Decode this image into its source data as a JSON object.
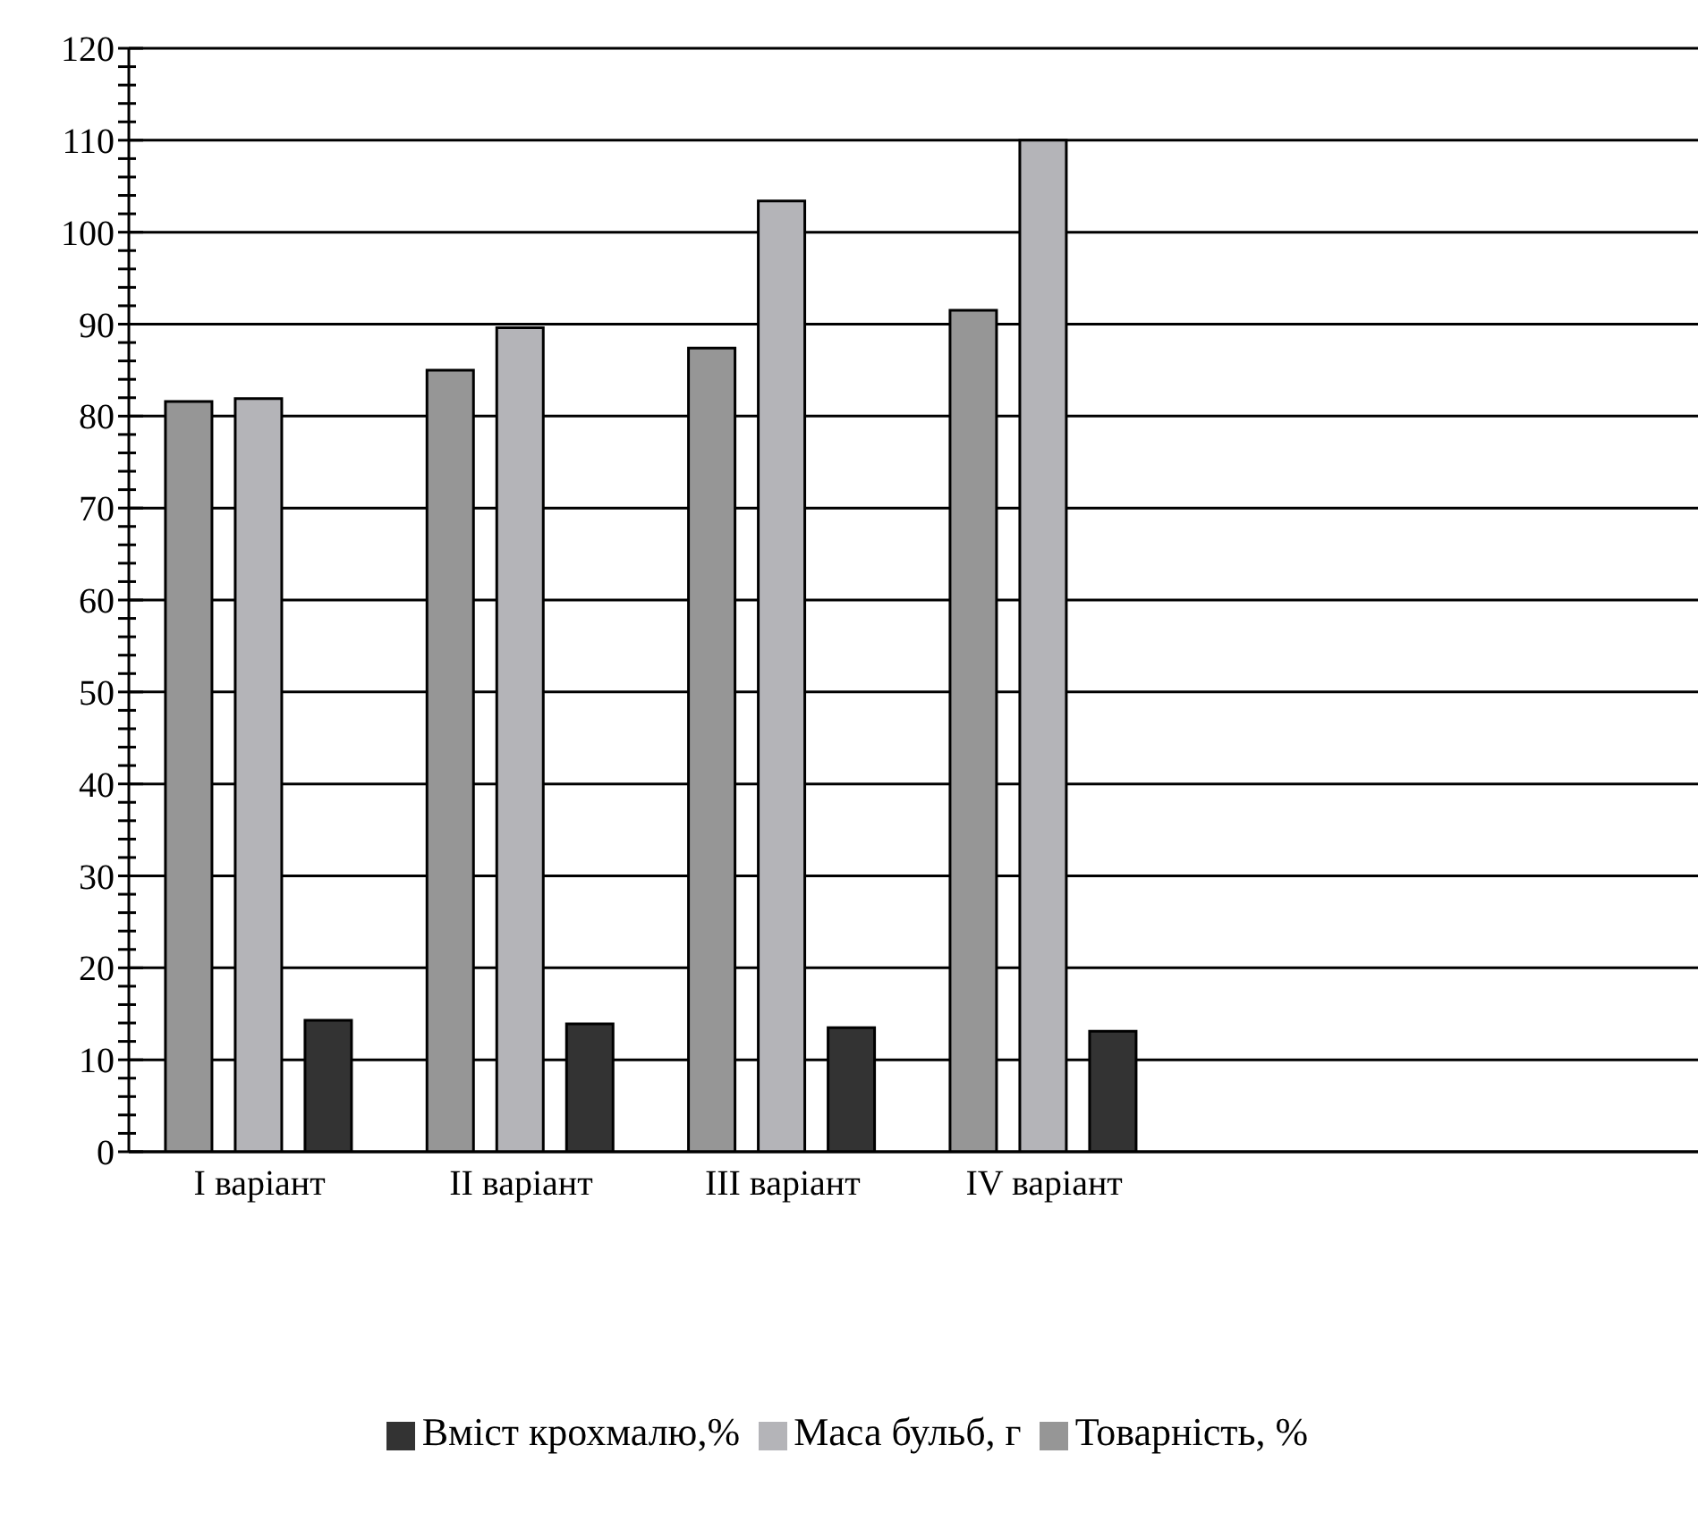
{
  "chart_data": {
    "type": "bar",
    "categories": [
      "I варіант",
      "II варіант",
      "III варіант",
      "IV варіант",
      null,
      null
    ],
    "series": [
      {
        "name": "Товарність, %",
        "color": "#969696",
        "values": [
          81.6,
          85.0,
          87.4,
          91.5,
          null,
          null
        ]
      },
      {
        "name": "Маса бульб, г",
        "color": "#b4b4b8",
        "values": [
          81.9,
          89.6,
          103.4,
          110,
          null,
          null
        ]
      },
      {
        "name": "Вміст крохмалю,%",
        "color": "#333333",
        "values": [
          14.3,
          13.9,
          13.5,
          13.1,
          null,
          null
        ]
      }
    ],
    "ylim": [
      0,
      120
    ],
    "yticks": [
      0,
      {
        "value": 2,
        "label": null
      },
      {
        "value": 4,
        "label": null
      },
      {
        "value": 6,
        "label": null
      },
      {
        "value": 8,
        "label": null
      },
      10,
      {
        "value": 12,
        "label": null
      },
      {
        "value": 14,
        "label": null
      },
      {
        "value": 16,
        "label": null
      },
      {
        "value": 18,
        "label": null
      },
      20,
      {
        "value": 22,
        "label": null
      },
      {
        "value": 24,
        "label": null
      },
      {
        "value": 26,
        "label": null
      },
      {
        "value": 28,
        "label": null
      },
      30,
      {
        "value": 32,
        "label": null
      },
      {
        "value": 34,
        "label": null
      },
      {
        "value": 36,
        "label": null
      },
      {
        "value": 38,
        "label": null
      },
      40,
      {
        "value": 42,
        "label": null
      },
      {
        "value": 44,
        "label": null
      },
      {
        "value": 46,
        "label": null
      },
      {
        "value": 48,
        "label": null
      },
      50,
      {
        "value": 52,
        "label": null
      },
      {
        "value": 54,
        "label": null
      },
      {
        "value": 56,
        "label": null
      },
      {
        "value": 58,
        "label": null
      },
      60,
      {
        "value": 62,
        "label": null
      },
      {
        "value": 64,
        "label": null
      },
      {
        "value": 66,
        "label": null
      },
      {
        "value": 68,
        "label": null
      },
      70,
      {
        "value": 72,
        "label": null
      },
      {
        "value": 74,
        "label": null
      },
      {
        "value": 76,
        "label": null
      },
      {
        "value": 78,
        "label": null
      },
      80,
      {
        "value": 82,
        "label": null
      },
      {
        "value": 84,
        "label": null
      },
      {
        "value": 86,
        "label": null
      },
      {
        "value": 88,
        "label": null
      },
      90,
      {
        "value": 92,
        "label": null
      },
      {
        "value": 94,
        "label": null
      },
      {
        "value": 96,
        "label": null
      },
      {
        "value": 98,
        "label": null
      },
      100,
      {
        "value": 102,
        "label": null
      },
      {
        "value": 104,
        "label": null
      },
      {
        "value": 106,
        "label": null
      },
      {
        "value": 108,
        "label": null
      },
      110,
      {
        "value": 112,
        "label": null
      },
      {
        "value": 114,
        "label": null
      },
      {
        "value": 116,
        "label": null
      },
      {
        "value": 118,
        "label": null
      },
      120
    ],
    "grid": "y",
    "legend": "bottom"
  }
}
